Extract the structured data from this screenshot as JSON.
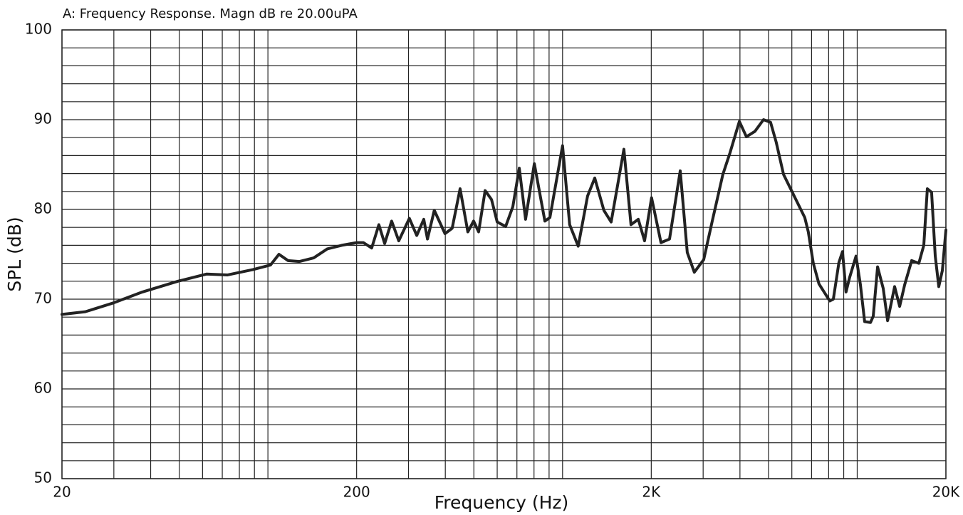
{
  "chart_data": {
    "type": "line",
    "title": "A: Frequency Response. Magn dB re 20.00uPA",
    "xlabel": "Frequency (Hz)",
    "ylabel": "SPL (dB)",
    "xscale": "log",
    "grid": true,
    "color": "#222222",
    "xlim": [
      20,
      20000
    ],
    "ylim": [
      50,
      100
    ],
    "xticks": [
      20,
      200,
      {
        "value": 2000,
        "label": "2K"
      },
      {
        "value": 20000,
        "label": "20K"
      }
    ],
    "xminorticks": [
      30,
      40,
      50,
      60,
      70,
      80,
      90,
      100,
      300,
      400,
      500,
      600,
      700,
      800,
      900,
      1000,
      3000,
      4000,
      5000,
      6000,
      7000,
      8000,
      9000,
      10000
    ],
    "yticks": [
      50,
      60,
      70,
      80,
      90,
      100
    ],
    "yminorticks": [
      52,
      54,
      56,
      58,
      62,
      64,
      66,
      68,
      72,
      74,
      76,
      78,
      82,
      84,
      86,
      88,
      92,
      94,
      96,
      98
    ],
    "x": [
      20,
      24,
      30,
      37.5,
      49.5,
      62,
      73,
      89,
      102,
      109,
      117,
      128,
      143,
      159,
      178,
      200,
      211,
      225,
      238,
      249,
      263,
      278,
      302,
      320,
      338,
      348,
      367,
      399,
      422,
      449,
      477,
      499,
      519,
      546,
      574,
      600,
      641,
      678,
      713,
      749,
      802,
      871,
      906,
      1000,
      1057,
      1130,
      1216,
      1286,
      1381,
      1462,
      1615,
      1707,
      1807,
      1898,
      2005,
      2158,
      2307,
      2508,
      2650,
      2800,
      3013,
      3221,
      3500,
      3700,
      3981,
      4207,
      4496,
      4808,
      5082,
      5309,
      5623,
      6109,
      6638,
      6823,
      7096,
      7417,
      8072,
      8298,
      8670,
      8914,
      9164,
      9421,
      9908,
      10255,
      10598,
      11092,
      11335,
      11727,
      12253,
      12681,
      13397,
      13935,
      14490,
      15306,
      16186,
      16826,
      17300,
      17884,
      18401,
      18918,
      19455,
      20000
    ],
    "values": [
      68.3,
      68.6,
      69.6,
      70.8,
      72.0,
      72.8,
      72.7,
      73.3,
      73.8,
      75.0,
      74.3,
      74.2,
      74.6,
      75.6,
      76.0,
      76.3,
      76.3,
      75.7,
      78.3,
      76.2,
      78.7,
      76.5,
      79.0,
      77.1,
      78.9,
      76.7,
      79.9,
      77.3,
      77.9,
      82.3,
      77.5,
      78.7,
      77.5,
      82.1,
      81.1,
      78.6,
      78.1,
      80.3,
      84.6,
      78.9,
      85.1,
      78.7,
      79.1,
      87.1,
      78.3,
      75.9,
      81.5,
      83.5,
      79.9,
      78.6,
      86.7,
      78.3,
      78.9,
      76.5,
      81.3,
      76.3,
      76.7,
      84.3,
      75.2,
      73.0,
      74.4,
      78.7,
      83.9,
      86.3,
      89.8,
      88.1,
      88.7,
      90.0,
      89.7,
      87.5,
      83.9,
      81.5,
      79.1,
      77.5,
      74.0,
      71.7,
      69.8,
      70.0,
      74.1,
      75.3,
      70.8,
      72.4,
      74.8,
      71.6,
      67.5,
      67.4,
      68.1,
      73.6,
      71.2,
      67.6,
      71.4,
      69.2,
      71.6,
      74.3,
      74.0,
      76.0,
      82.3,
      81.9,
      74.8,
      71.4,
      73.2,
      77.7
    ]
  }
}
